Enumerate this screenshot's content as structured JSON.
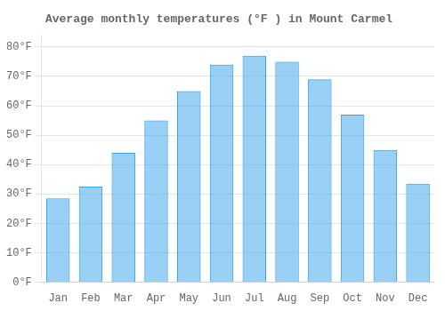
{
  "chart_data": {
    "type": "bar",
    "title": "Average monthly temperatures (°F ) in Mount Carmel",
    "categories": [
      "Jan",
      "Feb",
      "Mar",
      "Apr",
      "May",
      "Jun",
      "Jul",
      "Aug",
      "Sep",
      "Oct",
      "Nov",
      "Dec"
    ],
    "values": [
      28.5,
      32.5,
      44,
      55,
      65,
      74,
      77,
      75,
      69,
      57,
      45,
      33.5
    ],
    "ylim": [
      0,
      84
    ],
    "yticks": [
      {
        "value": 0,
        "label": "0°F"
      },
      {
        "value": 10,
        "label": "10°F"
      },
      {
        "value": 20,
        "label": "20°F"
      },
      {
        "value": 30,
        "label": "30°F"
      },
      {
        "value": 40,
        "label": "40°F"
      },
      {
        "value": 50,
        "label": "50°F"
      },
      {
        "value": 60,
        "label": "60°F"
      },
      {
        "value": 70,
        "label": "70°F"
      },
      {
        "value": 80,
        "label": "80°F"
      }
    ],
    "grid": true
  }
}
